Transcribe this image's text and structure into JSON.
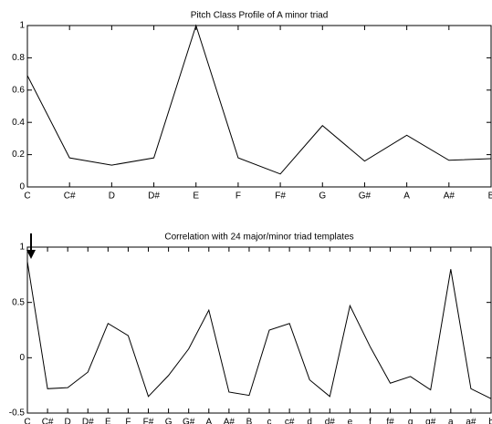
{
  "chart_data": [
    {
      "type": "line",
      "title": "Pitch Class Profile of A minor triad",
      "categories": [
        "C",
        "C#",
        "D",
        "D#",
        "E",
        "F",
        "F#",
        "G",
        "G#",
        "A",
        "A#",
        "B"
      ],
      "values": [
        0.69,
        0.18,
        0.135,
        0.18,
        1.0,
        0.18,
        0.08,
        0.38,
        0.16,
        0.32,
        0.165,
        0.175
      ],
      "color": "#000000",
      "ylim": [
        0,
        1
      ],
      "yticks": [
        0,
        0.2,
        0.4,
        0.6,
        0.8,
        1
      ]
    },
    {
      "type": "line",
      "title": "Correlation with 24 major/minor triad templates",
      "categories": [
        "C",
        "C#",
        "D",
        "D#",
        "E",
        "F",
        "F#",
        "G",
        "G#",
        "A",
        "A#",
        "B",
        "c",
        "c#",
        "d",
        "d#",
        "e",
        "f",
        "f#",
        "g",
        "g#",
        "a",
        "a#",
        "b"
      ],
      "values": [
        0.87,
        -0.28,
        -0.27,
        -0.13,
        0.31,
        0.2,
        -0.35,
        -0.16,
        0.08,
        0.43,
        -0.31,
        -0.34,
        0.25,
        0.31,
        -0.2,
        -0.35,
        0.47,
        0.1,
        -0.23,
        -0.17,
        -0.29,
        0.8,
        -0.28,
        -0.37
      ],
      "color": "#000000",
      "ylim": [
        -0.5,
        1
      ],
      "yticks": [
        -0.5,
        0,
        0.5,
        1
      ]
    }
  ]
}
